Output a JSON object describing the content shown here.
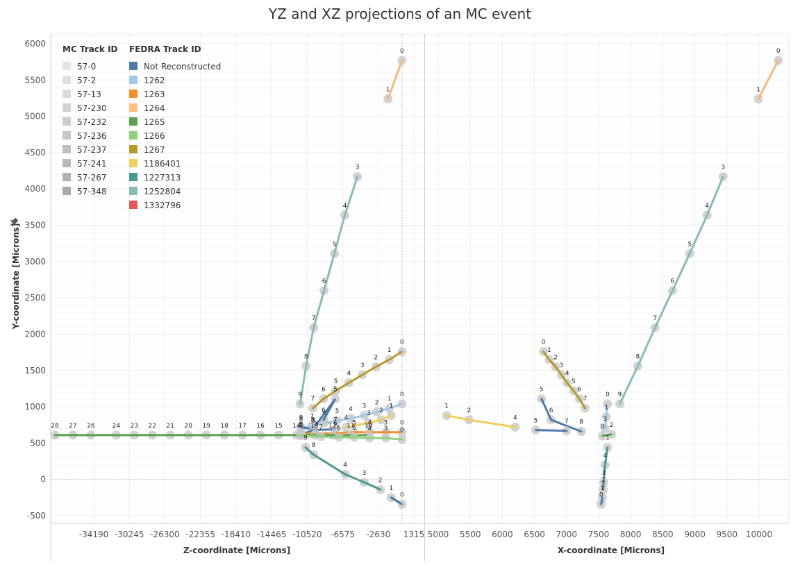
{
  "title": "YZ and XZ projections of an MC event",
  "chart_data": [
    {
      "type": "line",
      "name": "YZ projection",
      "xlabel": "Z-coordinate [Microns]",
      "ylabel": "Y-coordinate [Microns]",
      "xlim": [
        -37600,
        1900
      ],
      "ylim": [
        -500,
        6000
      ],
      "x_ticks": [
        -34190,
        -30245,
        -26300,
        -22355,
        -18410,
        -14465,
        -10520,
        -6575,
        -2630,
        1315
      ],
      "y_ticks": [
        -500,
        0,
        500,
        1000,
        1500,
        2000,
        2500,
        3000,
        3500,
        4000,
        4500,
        5000,
        5500,
        6000
      ],
      "zero_line_x": 0,
      "zero_line_y": 0,
      "tracks": [
        {
          "color": "#f5b97a",
          "points": [
            [
              -1560,
              5240,
              "1"
            ],
            [
              0,
              5770,
              "0"
            ]
          ]
        },
        {
          "color": "#86bcb6",
          "points": [
            [
              -11300,
              1040,
              "9"
            ],
            [
              -10640,
              1560,
              "8"
            ],
            [
              -9800,
              2090,
              "7"
            ],
            [
              -8650,
              2600,
              "6"
            ],
            [
              -7500,
              3110,
              "5"
            ],
            [
              -6350,
              3640,
              "4"
            ],
            [
              -4950,
              4170,
              "3"
            ]
          ]
        },
        {
          "color": "#b6992d",
          "points": [
            [
              0,
              1760,
              "0"
            ],
            [
              -1400,
              1650,
              "1"
            ],
            [
              -2900,
              1550,
              "2"
            ],
            [
              -4400,
              1440,
              "3"
            ],
            [
              -5900,
              1330,
              "4"
            ],
            [
              -7350,
              1220,
              "5"
            ],
            [
              -8700,
              1110,
              "6"
            ],
            [
              -9900,
              980,
              "7"
            ]
          ]
        },
        {
          "color": "#a0cbe8",
          "points": [
            [
              0,
              1040,
              "0"
            ],
            [
              -1400,
              980,
              "1"
            ],
            [
              -2800,
              930,
              "2"
            ],
            [
              -4200,
              880,
              "3"
            ],
            [
              -5700,
              840,
              "4"
            ],
            [
              -7200,
              810,
              "5"
            ],
            [
              -8600,
              780,
              "6"
            ],
            [
              -10000,
              740,
              "7"
            ],
            [
              -11200,
              700,
              "8"
            ]
          ]
        },
        {
          "color": "#4e79a7",
          "points": [
            [
              -11200,
              720,
              "9"
            ],
            [
              -9900,
              690,
              "8"
            ],
            [
              -7400,
              1110,
              "5"
            ],
            [
              -8700,
              820,
              "6"
            ]
          ]
        },
        {
          "color": "#4e79a7",
          "points": [
            [
              -11200,
              620,
              "9"
            ],
            [
              -9800,
              680,
              "8"
            ],
            [
              -7400,
              690,
              "7"
            ]
          ]
        },
        {
          "color": "#f1ce63",
          "points": [
            [
              -6200,
              720,
              "4"
            ],
            [
              -3700,
              780,
              "3"
            ],
            [
              -2300,
              820,
              "2"
            ],
            [
              -1200,
              880,
              "1"
            ]
          ]
        },
        {
          "color": "#f28e2b",
          "points": [
            [
              -11200,
              630,
              "8"
            ],
            [
              -9600,
              630,
              "7"
            ],
            [
              -7400,
              640,
              "6"
            ],
            [
              -5300,
              650,
              "5"
            ],
            [
              -3600,
              650,
              "4"
            ],
            [
              -1800,
              650,
              "3"
            ],
            [
              0,
              650,
              "0"
            ]
          ]
        },
        {
          "color": "#59a14f",
          "points": [
            [
              -38500,
              610,
              "28"
            ],
            [
              -36500,
              610,
              "27"
            ],
            [
              -34500,
              610,
              "26"
            ],
            [
              -31700,
              610,
              "24"
            ],
            [
              -29700,
              610,
              "23"
            ],
            [
              -27700,
              610,
              "22"
            ],
            [
              -25700,
              610,
              "21"
            ],
            [
              -23700,
              610,
              "20"
            ],
            [
              -21700,
              610,
              "19"
            ],
            [
              -19700,
              610,
              "18"
            ],
            [
              -17700,
              610,
              "17"
            ],
            [
              -15700,
              610,
              "16"
            ],
            [
              -13700,
              610,
              "15"
            ],
            [
              -11700,
              610,
              "14"
            ],
            [
              -9700,
              610,
              "13"
            ],
            [
              -7700,
              610,
              "12"
            ],
            [
              -5700,
              610,
              "11"
            ],
            [
              -3700,
              610,
              "10"
            ],
            [
              -11200,
              610,
              ""
            ]
          ]
        },
        {
          "color": "#8cd17d",
          "points": [
            [
              -11200,
              600,
              ""
            ],
            [
              -9000,
              590,
              "7"
            ],
            [
              -7000,
              580,
              "6"
            ],
            [
              -5300,
              580,
              "5"
            ],
            [
              -3600,
              570,
              "4"
            ],
            [
              -1800,
              570,
              "3"
            ],
            [
              0,
              550,
              "0"
            ]
          ]
        },
        {
          "color": "#499894",
          "points": [
            [
              -10700,
              440,
              "9"
            ],
            [
              -9800,
              340,
              "8"
            ],
            [
              -6300,
              70,
              "4"
            ],
            [
              -4200,
              -40,
              "3"
            ],
            [
              -2400,
              -140,
              "2"
            ]
          ]
        },
        {
          "color": "#4e79a7",
          "points": [
            [
              -1200,
              -250,
              "1"
            ],
            [
              0,
              -340,
              "0"
            ]
          ]
        }
      ]
    },
    {
      "type": "line",
      "name": "XZ projection",
      "xlabel": "X-coordinate [Microns]",
      "ylabel": "Y-coordinate [Microns]",
      "xlim": [
        4800,
        10500
      ],
      "ylim": [
        -500,
        6000
      ],
      "x_ticks": [
        5000,
        5500,
        6000,
        6500,
        7000,
        7500,
        8000,
        8500,
        9000,
        9500,
        10000
      ],
      "tracks": [
        {
          "color": "#f5b97a",
          "points": [
            [
              9990,
              5240,
              "1"
            ],
            [
              10300,
              5770,
              "0"
            ]
          ]
        },
        {
          "color": "#86bcb6",
          "points": [
            [
              7830,
              1040,
              "9"
            ],
            [
              8110,
              1560,
              "8"
            ],
            [
              8380,
              2090,
              "7"
            ],
            [
              8650,
              2600,
              "6"
            ],
            [
              8920,
              3110,
              "5"
            ],
            [
              9190,
              3640,
              "4"
            ],
            [
              9440,
              4170,
              "3"
            ]
          ]
        },
        {
          "color": "#b6992d",
          "points": [
            [
              6640,
              1760,
              "0"
            ],
            [
              6730,
              1650,
              "1"
            ],
            [
              6830,
              1550,
              "2"
            ],
            [
              6920,
              1440,
              "3"
            ],
            [
              7010,
              1330,
              "4"
            ],
            [
              7110,
              1220,
              "5"
            ],
            [
              7200,
              1110,
              "6"
            ],
            [
              7290,
              980,
              "7"
            ]
          ]
        },
        {
          "color": "#f1ce63",
          "points": [
            [
              5130,
              880,
              "1"
            ],
            [
              5480,
              820,
              "2"
            ],
            [
              6200,
              720,
              "4"
            ]
          ]
        },
        {
          "color": "#4e79a7",
          "points": [
            [
              6610,
              1110,
              "5"
            ],
            [
              6760,
              820,
              "6"
            ],
            [
              7230,
              660,
              "8"
            ]
          ]
        },
        {
          "color": "#4e79a7",
          "points": [
            [
              6520,
              680,
              "5"
            ],
            [
              7000,
              670,
              "7"
            ]
          ]
        },
        {
          "color": "#a0cbe8",
          "points": [
            [
              7640,
              1040,
              "0"
            ],
            [
              7620,
              860,
              "1"
            ],
            [
              7600,
              700,
              "3"
            ]
          ]
        },
        {
          "color": "#59a14f",
          "points": [
            [
              7560,
              600,
              "0"
            ],
            [
              7700,
              620,
              "2"
            ]
          ]
        },
        {
          "color": "#499894",
          "points": [
            [
              7640,
              440,
              "1"
            ],
            [
              7600,
              200,
              "4"
            ],
            [
              7580,
              -40,
              "3"
            ],
            [
              7570,
              -140,
              "2"
            ]
          ]
        },
        {
          "color": "#4e79a7",
          "points": [
            [
              7560,
              -250,
              "1"
            ],
            [
              7540,
              -340,
              "0"
            ]
          ]
        }
      ]
    }
  ],
  "legend_mc": {
    "title": "MC Track ID",
    "items": [
      {
        "label": "57-0",
        "color": "#e6e6e6"
      },
      {
        "label": "57-2",
        "color": "#e0e0e0"
      },
      {
        "label": "57-13",
        "color": "#dadada"
      },
      {
        "label": "57-230",
        "color": "#d3d3d3"
      },
      {
        "label": "57-232",
        "color": "#cdcdcd"
      },
      {
        "label": "57-236",
        "color": "#c6c6c6"
      },
      {
        "label": "57-237",
        "color": "#c0c0c0"
      },
      {
        "label": "57-241",
        "color": "#b9b9b9"
      },
      {
        "label": "57-267",
        "color": "#b3b0b0"
      },
      {
        "label": "57-348",
        "color": "#aca9a9"
      }
    ]
  },
  "legend_fedra": {
    "title": "FEDRA Track ID",
    "items": [
      {
        "label": "Not Reconstructed",
        "color": "#4e79a7"
      },
      {
        "label": "1262",
        "color": "#a0cbe8"
      },
      {
        "label": "1263",
        "color": "#f28e2b"
      },
      {
        "label": "1264",
        "color": "#ffbe7d"
      },
      {
        "label": "1265",
        "color": "#59a14f"
      },
      {
        "label": "1266",
        "color": "#8cd17d"
      },
      {
        "label": "1267",
        "color": "#b6992d"
      },
      {
        "label": "1186401",
        "color": "#f1ce63"
      },
      {
        "label": "1227313",
        "color": "#499894"
      },
      {
        "label": "1252804",
        "color": "#86bcb6"
      },
      {
        "label": "1332796",
        "color": "#e15759"
      }
    ]
  },
  "pin_icon": "pin-icon"
}
